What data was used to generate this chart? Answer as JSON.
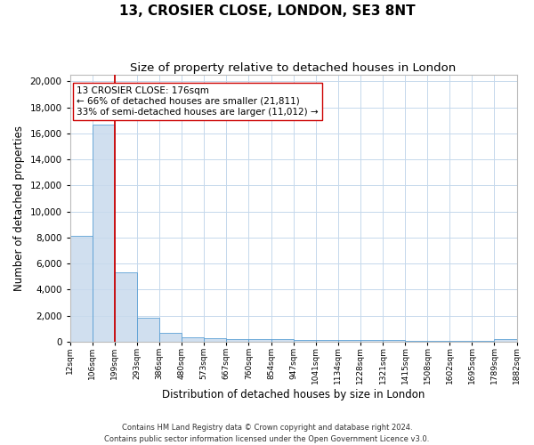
{
  "title": "13, CROSIER CLOSE, LONDON, SE3 8NT",
  "subtitle": "Size of property relative to detached houses in London",
  "xlabel": "Distribution of detached houses by size in London",
  "ylabel": "Number of detached properties",
  "categories": [
    "12sqm",
    "106sqm",
    "199sqm",
    "293sqm",
    "386sqm",
    "480sqm",
    "573sqm",
    "667sqm",
    "760sqm",
    "854sqm",
    "947sqm",
    "1041sqm",
    "1134sqm",
    "1228sqm",
    "1321sqm",
    "1415sqm",
    "1508sqm",
    "1602sqm",
    "1695sqm",
    "1789sqm",
    "1882sqm"
  ],
  "values": [
    8100,
    16700,
    5300,
    1800,
    700,
    350,
    280,
    220,
    180,
    160,
    140,
    120,
    110,
    100,
    90,
    85,
    80,
    75,
    70,
    200
  ],
  "bar_color": "#c8daed",
  "bar_edge_color": "#5a9fd4",
  "bar_alpha": 0.85,
  "annotation_text": "13 CROSIER CLOSE: 176sqm\n← 66% of detached houses are smaller (21,811)\n33% of semi-detached houses are larger (11,012) →",
  "vline_x": 2,
  "vline_color": "#cc0000",
  "annotation_box_color": "#ffffff",
  "annotation_box_edge": "#cc0000",
  "ylim": [
    0,
    20500
  ],
  "yticks": [
    0,
    2000,
    4000,
    6000,
    8000,
    10000,
    12000,
    14000,
    16000,
    18000,
    20000
  ],
  "background_color": "#ffffff",
  "grid_color": "#c5d8ec",
  "footer": "Contains HM Land Registry data © Crown copyright and database right 2024.\nContains public sector information licensed under the Open Government Licence v3.0.",
  "title_fontsize": 11,
  "subtitle_fontsize": 9.5,
  "ylabel_fontsize": 8.5,
  "xlabel_fontsize": 8.5,
  "tick_fontsize": 7.5,
  "xtick_fontsize": 6.5,
  "footer_fontsize": 6
}
